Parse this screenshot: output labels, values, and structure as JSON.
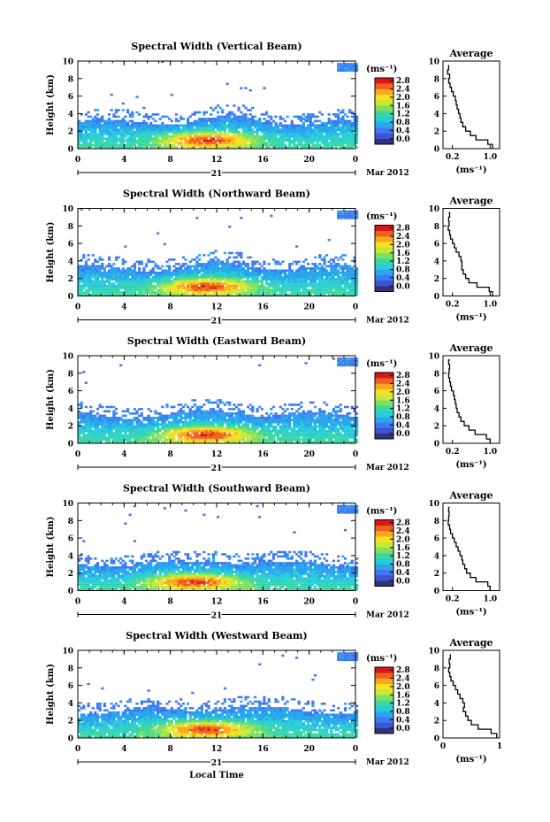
{
  "page": {
    "xlabel": "Local Time",
    "day_label": "21",
    "date_label": "Mar 2012",
    "ylabel": "Height (km)",
    "colorbar_unit": "(ms⁻¹)",
    "avg_title": "Average",
    "avg_xlabel": "(ms⁻¹)"
  },
  "colorbar": {
    "ticks": [
      "0.0",
      "0.4",
      "0.8",
      "1.2",
      "1.6",
      "2.0",
      "2.4",
      "2.8"
    ],
    "colors": [
      "#33337a",
      "#3a55d4",
      "#3f78f0",
      "#2aa6ee",
      "#28ccd8",
      "#38d8a0",
      "#7ee060",
      "#c8e838",
      "#f6e020",
      "#f8a820",
      "#f06018",
      "#d81818"
    ]
  },
  "chart_data": [
    {
      "type": "heatmap",
      "title": "Spectral Width (Vertical Beam)",
      "xlabel": "Local Time",
      "ylabel": "Height (km)",
      "xlim": [
        0,
        24
      ],
      "ylim": [
        0,
        10
      ],
      "xticks": [
        "0",
        "4",
        "8",
        "12",
        "16",
        "20",
        "0"
      ],
      "yticks": [
        "0",
        "2",
        "4",
        "6",
        "8",
        "10"
      ],
      "colorbar_range": [
        0.0,
        2.8
      ],
      "layer_top_km": 3.0,
      "hot_center_hour": 11,
      "hot_center_km": 1.0,
      "average": {
        "title": "Average",
        "xlabel": "(ms⁻¹)",
        "xticks": [
          "0.2",
          "1.0"
        ],
        "xlim": [
          0.0,
          1.2
        ],
        "height_km": [
          0,
          0.5,
          1,
          1.5,
          2,
          2.5,
          3,
          3.5,
          4,
          4.5,
          5,
          5.5,
          6,
          6.5,
          7,
          7.5,
          8,
          8.5,
          9,
          9.5
        ],
        "value": [
          1.05,
          0.95,
          0.7,
          0.58,
          0.48,
          0.42,
          0.38,
          0.36,
          0.33,
          0.3,
          0.28,
          0.26,
          0.22,
          0.18,
          0.15,
          0.12,
          0.14,
          0.1,
          0.12,
          0.13
        ]
      }
    },
    {
      "type": "heatmap",
      "title": "Spectral Width (Northward Beam)",
      "xlabel": "Local Time",
      "ylabel": "Height (km)",
      "xlim": [
        0,
        24
      ],
      "ylim": [
        0,
        10
      ],
      "xticks": [
        "0",
        "4",
        "8",
        "12",
        "16",
        "20",
        "0"
      ],
      "yticks": [
        "0",
        "2",
        "4",
        "6",
        "8",
        "10"
      ],
      "colorbar_range": [
        0.0,
        2.8
      ],
      "layer_top_km": 3.2,
      "hot_center_hour": 11,
      "hot_center_km": 1.1,
      "average": {
        "title": "Average",
        "xlabel": "(ms⁻¹)",
        "xticks": [
          "0.2",
          "1.0"
        ],
        "xlim": [
          0.0,
          1.2
        ],
        "height_km": [
          0,
          0.5,
          1,
          1.5,
          2,
          2.5,
          3,
          3.5,
          4,
          4.5,
          5,
          5.5,
          6,
          6.5,
          7,
          7.5,
          8,
          8.5,
          9,
          9.5
        ],
        "value": [
          1.05,
          0.98,
          0.72,
          0.55,
          0.48,
          0.43,
          0.4,
          0.4,
          0.38,
          0.34,
          0.28,
          0.24,
          0.2,
          0.16,
          0.14,
          0.11,
          0.13,
          0.12,
          0.14,
          0.12
        ]
      }
    },
    {
      "type": "heatmap",
      "title": "Spectral Width (Eastward Beam)",
      "xlabel": "Local Time",
      "ylabel": "Height (km)",
      "xlim": [
        0,
        24
      ],
      "ylim": [
        0,
        10
      ],
      "xticks": [
        "0",
        "4",
        "8",
        "12",
        "16",
        "20",
        "0"
      ],
      "yticks": [
        "0",
        "2",
        "4",
        "6",
        "8",
        "10"
      ],
      "colorbar_range": [
        0.0,
        2.8
      ],
      "layer_top_km": 3.2,
      "hot_center_hour": 11,
      "hot_center_km": 1.0,
      "average": {
        "title": "Average",
        "xlabel": "(ms⁻¹)",
        "xticks": [
          "0.2",
          "1.0"
        ],
        "xlim": [
          0.0,
          1.2
        ],
        "height_km": [
          0,
          0.5,
          1,
          1.5,
          2,
          2.5,
          3,
          3.5,
          4,
          4.5,
          5,
          5.5,
          6,
          6.5,
          7,
          7.5,
          8,
          8.5,
          9,
          9.5
        ],
        "value": [
          1.0,
          0.92,
          0.68,
          0.55,
          0.45,
          0.38,
          0.34,
          0.3,
          0.28,
          0.26,
          0.24,
          0.22,
          0.18,
          0.16,
          0.14,
          0.12,
          0.13,
          0.14,
          0.12,
          0.15
        ]
      }
    },
    {
      "type": "heatmap",
      "title": "Spectral Width (Southward Beam)",
      "xlabel": "Local Time",
      "ylabel": "Height (km)",
      "xlim": [
        0,
        24
      ],
      "ylim": [
        0,
        10
      ],
      "xticks": [
        "0",
        "4",
        "8",
        "12",
        "16",
        "20",
        "0"
      ],
      "yticks": [
        "0",
        "2",
        "4",
        "6",
        "8",
        "10"
      ],
      "colorbar_range": [
        0.0,
        2.8
      ],
      "layer_top_km": 3.0,
      "hot_center_hour": 10,
      "hot_center_km": 1.0,
      "average": {
        "title": "Average",
        "xlabel": "(ms⁻¹)",
        "xticks": [
          "0.2",
          "1.0"
        ],
        "xlim": [
          0.0,
          1.2
        ],
        "height_km": [
          0,
          0.5,
          1,
          1.5,
          2,
          2.5,
          3,
          3.5,
          4,
          4.5,
          5,
          5.5,
          6,
          6.5,
          7,
          7.5,
          8,
          8.5,
          9,
          9.5
        ],
        "value": [
          1.0,
          0.95,
          0.7,
          0.58,
          0.5,
          0.46,
          0.42,
          0.4,
          0.36,
          0.32,
          0.28,
          0.24,
          0.2,
          0.16,
          0.14,
          0.11,
          0.12,
          0.13,
          0.12,
          0.14
        ]
      }
    },
    {
      "type": "heatmap",
      "title": "Spectral Width (Westward Beam)",
      "xlabel": "Local Time",
      "ylabel": "Height (km)",
      "xlim": [
        0,
        24
      ],
      "ylim": [
        0,
        10
      ],
      "xticks": [
        "0",
        "4",
        "8",
        "12",
        "16",
        "20",
        "0"
      ],
      "yticks": [
        "0",
        "2",
        "4",
        "6",
        "8",
        "10"
      ],
      "colorbar_range": [
        0.0,
        2.8
      ],
      "layer_top_km": 3.1,
      "hot_center_hour": 11,
      "hot_center_km": 1.0,
      "average": {
        "title": "Average",
        "xlabel": "(ms⁻¹)",
        "xticks": [
          "0",
          "1"
        ],
        "xlim": [
          0.0,
          1.0
        ],
        "height_km": [
          0,
          0.5,
          1,
          1.5,
          2,
          2.5,
          3,
          3.5,
          4,
          4.5,
          5,
          5.5,
          6,
          6.5,
          7,
          7.5,
          8,
          8.5,
          9,
          9.5
        ],
        "value": [
          0.95,
          0.85,
          0.62,
          0.5,
          0.44,
          0.4,
          0.36,
          0.38,
          0.35,
          0.3,
          0.26,
          0.22,
          0.18,
          0.14,
          0.12,
          0.1,
          0.12,
          0.11,
          0.13,
          0.12
        ]
      }
    }
  ]
}
